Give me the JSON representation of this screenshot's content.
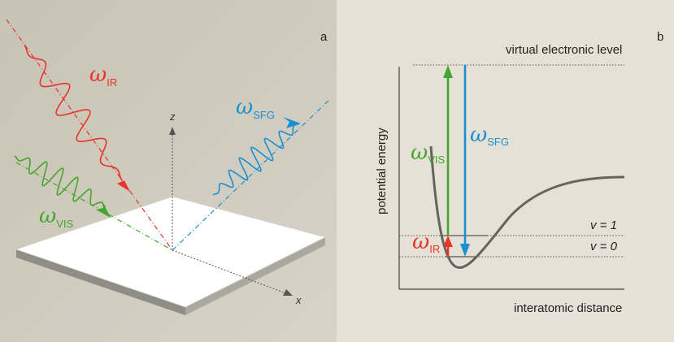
{
  "panel_a": {
    "label": "a",
    "beams": {
      "ir": {
        "symbol": "ω",
        "subscript": "IR",
        "color": "#e8342a"
      },
      "vis": {
        "symbol": "ω",
        "subscript": "VIS",
        "color": "#44a62e"
      },
      "sfg": {
        "symbol": "ω",
        "subscript": "SFG",
        "color": "#1a8fd1"
      }
    },
    "axes": {
      "z": "z",
      "x": "x"
    }
  },
  "panel_b": {
    "label": "b",
    "ylabel": "potential energy",
    "xlabel": "interatomic distance",
    "virtual_level": "virtual electronic level",
    "levels": {
      "v1": "v = 1",
      "v0": "v = 0"
    },
    "arrows": {
      "vis": {
        "symbol": "ω",
        "subscript": "VIS",
        "color": "#44a62e"
      },
      "sfg": {
        "symbol": "ω",
        "subscript": "SFG",
        "color": "#1a8fd1"
      },
      "ir": {
        "symbol": "ω",
        "subscript": "IR",
        "color": "#e8342a"
      }
    }
  },
  "colors": {
    "panel_a_bg": "#cdc8bb",
    "panel_b_bg": "#e5e1d6",
    "curve": "#66645f",
    "plate_top": "#ffffff"
  }
}
